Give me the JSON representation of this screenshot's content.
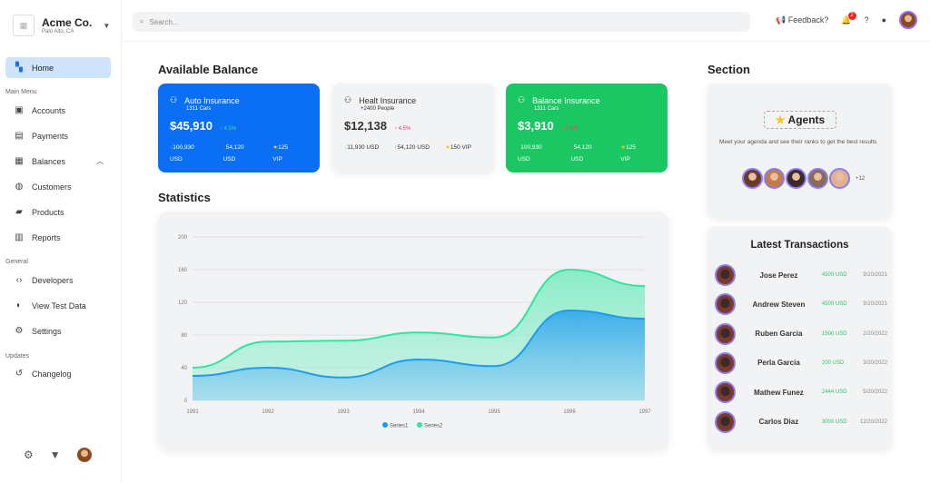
{
  "org": {
    "name": "Acme Co.",
    "location": "Palo Alto, CA"
  },
  "sidebar": {
    "home": "Home",
    "main_menu": "Main Menu",
    "items": [
      {
        "label": "Accounts",
        "icon": "person-card-icon"
      },
      {
        "label": "Payments",
        "icon": "wallet-icon"
      },
      {
        "label": "Balances",
        "icon": "table-icon"
      },
      {
        "label": "Customers",
        "icon": "globe-icon"
      },
      {
        "label": "Products",
        "icon": "briefcase-icon"
      },
      {
        "label": "Reports",
        "icon": "clipboard-icon"
      }
    ],
    "general": "General",
    "general_items": [
      {
        "label": "Developers",
        "icon": "code-icon"
      },
      {
        "label": "View Test Data",
        "icon": "toggle-icon"
      },
      {
        "label": "Settings",
        "icon": "gear-icon"
      }
    ],
    "updates": "Updates",
    "update_items": [
      {
        "label": "Changelog",
        "icon": "history-icon"
      }
    ]
  },
  "topbar": {
    "search_placeholder": "Search...",
    "feedback": "Feedback?",
    "notifications": "2"
  },
  "balance": {
    "title": "Available Balance",
    "cards": [
      {
        "title": "Auto Insurance",
        "sub": "1311 Cars",
        "amount": "$45,910",
        "change": "4.5%",
        "s1": "100,930",
        "s1u": "USD",
        "s2": "54,120",
        "s2u": "USD",
        "s3": "125",
        "s3u": "VIP",
        "color": "#0a6ff5"
      },
      {
        "title": "Healt Insurance",
        "sub": "+2400 People",
        "amount": "$12,138",
        "change": "4.5%",
        "s1": "11,930 USD",
        "s2": "54,120 USD",
        "s3": "150 VIP",
        "color": "#f2f3f5"
      },
      {
        "title": "Balance Insurance",
        "sub": "1311 Cars",
        "amount": "$3,910",
        "change": "4.5%",
        "s1": "100,930",
        "s1u": "USD",
        "s2": "54,120",
        "s2u": "USD",
        "s3": "125",
        "s3u": "VIP",
        "color": "#1bc762"
      }
    ]
  },
  "statistics": {
    "title": "Statistics"
  },
  "chart_data": {
    "type": "area",
    "x": [
      "1991",
      "1992",
      "1993",
      "1994",
      "1995",
      "1996",
      "1997"
    ],
    "series": [
      {
        "name": "Series1",
        "values": [
          30,
          40,
          28,
          50,
          42,
          110,
          100
        ],
        "color": "#1e9cf0"
      },
      {
        "name": "Series2",
        "values": [
          40,
          72,
          73,
          83,
          77,
          160,
          140
        ],
        "color": "#2ee6a0"
      }
    ],
    "yticks": [
      0,
      40,
      80,
      120,
      160,
      200
    ],
    "ylim": [
      0,
      200
    ],
    "grid": true,
    "legend": "bottom"
  },
  "section": {
    "title": "Section",
    "agents_label": "Agents",
    "agents_text": "Meet your agenda and see their ranks to get the best results",
    "more": "+12"
  },
  "transactions": {
    "title": "Latest Transactions",
    "rows": [
      {
        "name": "Jose Perez",
        "amount": "4500 USD",
        "date": "9/20/2021"
      },
      {
        "name": "Andrew Steven",
        "amount": "4500 USD",
        "date": "9/20/2021"
      },
      {
        "name": "Ruben Garcia",
        "amount": "1500 USD",
        "date": "2/20/2022"
      },
      {
        "name": "Perla Garcia",
        "amount": "200 USD",
        "date": "3/20/2022"
      },
      {
        "name": "Mathew Funez",
        "amount": "2444 USD",
        "date": "5/20/2022"
      },
      {
        "name": "Carlos Diaz",
        "amount": "3000 USD",
        "date": "12/20/2022"
      }
    ]
  }
}
